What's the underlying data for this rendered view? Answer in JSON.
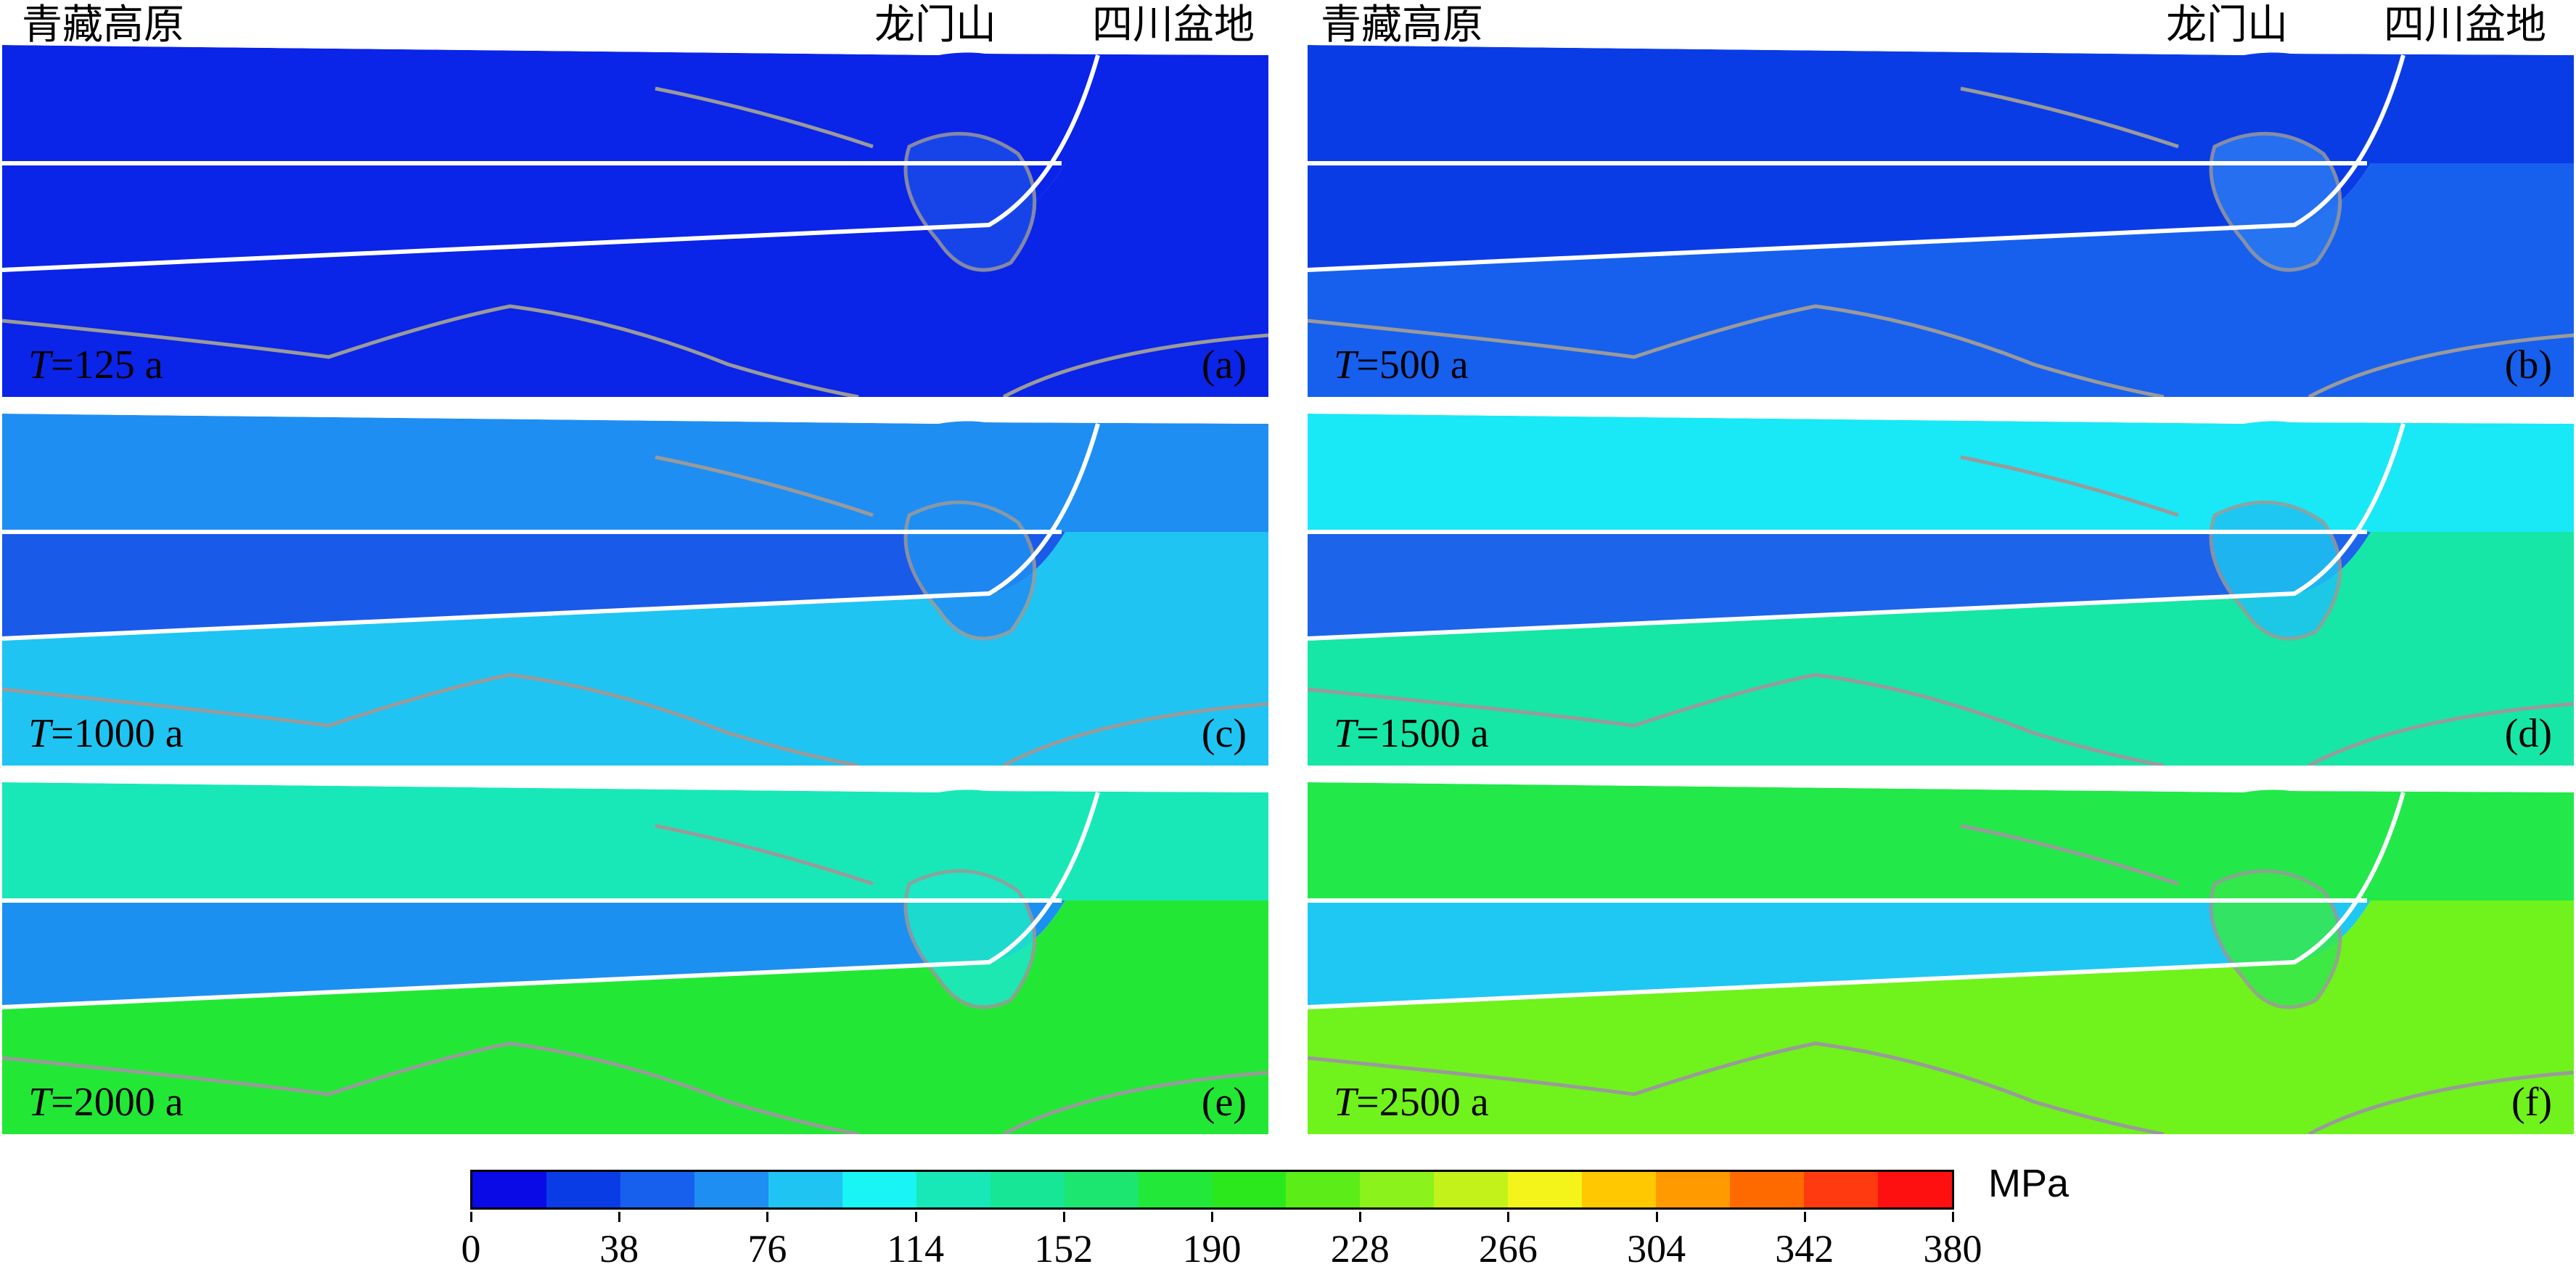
{
  "region_labels": {
    "left_plateau": "青藏高原",
    "left_mountain": "龙门山",
    "left_basin": "四川盆地",
    "right_plateau": "青藏高原",
    "right_mountain": "龙门山",
    "right_basin": "四川盆地"
  },
  "panels": [
    {
      "id": "(a)",
      "time_var": "T",
      "time_text": "=125 a",
      "upper": "#0a24e8",
      "crust": "#0a24e8",
      "lower": "#0a24e8",
      "accent": "#1a4ae8"
    },
    {
      "id": "(b)",
      "time_var": "T",
      "time_text": "=500 a",
      "upper": "#0a3ce6",
      "crust": "#0a3ce6",
      "lower": "#1760ee",
      "accent": "#2a78f2"
    },
    {
      "id": "(c)",
      "time_var": "T",
      "time_text": "=1000 a",
      "upper": "#1f8ef2",
      "crust": "#1a5ae8",
      "lower": "#1fc4f2",
      "accent": "#1f8ef2"
    },
    {
      "id": "(d)",
      "time_var": "T",
      "time_text": "=1500 a",
      "upper": "#19e8f6",
      "crust": "#1c64ea",
      "lower": "#16e6a6",
      "accent": "#1fc2f2"
    },
    {
      "id": "(e)",
      "time_var": "T",
      "time_text": "=2000 a",
      "upper": "#18e8b8",
      "crust": "#1c90f0",
      "lower": "#22e835",
      "accent": "#1de8c8"
    },
    {
      "id": "(f)",
      "time_var": "T",
      "time_text": "=2500 a",
      "upper": "#22e84a",
      "crust": "#1ec8f2",
      "lower": "#70f21c",
      "accent": "#36e84c"
    }
  ],
  "colorbar": {
    "unit": "MPa",
    "colors": [
      "#0a0ae6",
      "#0a3ce6",
      "#1760ee",
      "#1f8ef2",
      "#1fc4f2",
      "#19f4f4",
      "#18e8b8",
      "#16e696",
      "#1ce670",
      "#22e83a",
      "#2ae81c",
      "#5cec18",
      "#8cf21c",
      "#c2f21a",
      "#f4f41a",
      "#ffc800",
      "#ff9a00",
      "#ff6a00",
      "#ff3a10",
      "#ff1010"
    ],
    "ticks": [
      "0",
      "38",
      "76",
      "114",
      "152",
      "190",
      "228",
      "266",
      "304",
      "342",
      "380"
    ]
  }
}
